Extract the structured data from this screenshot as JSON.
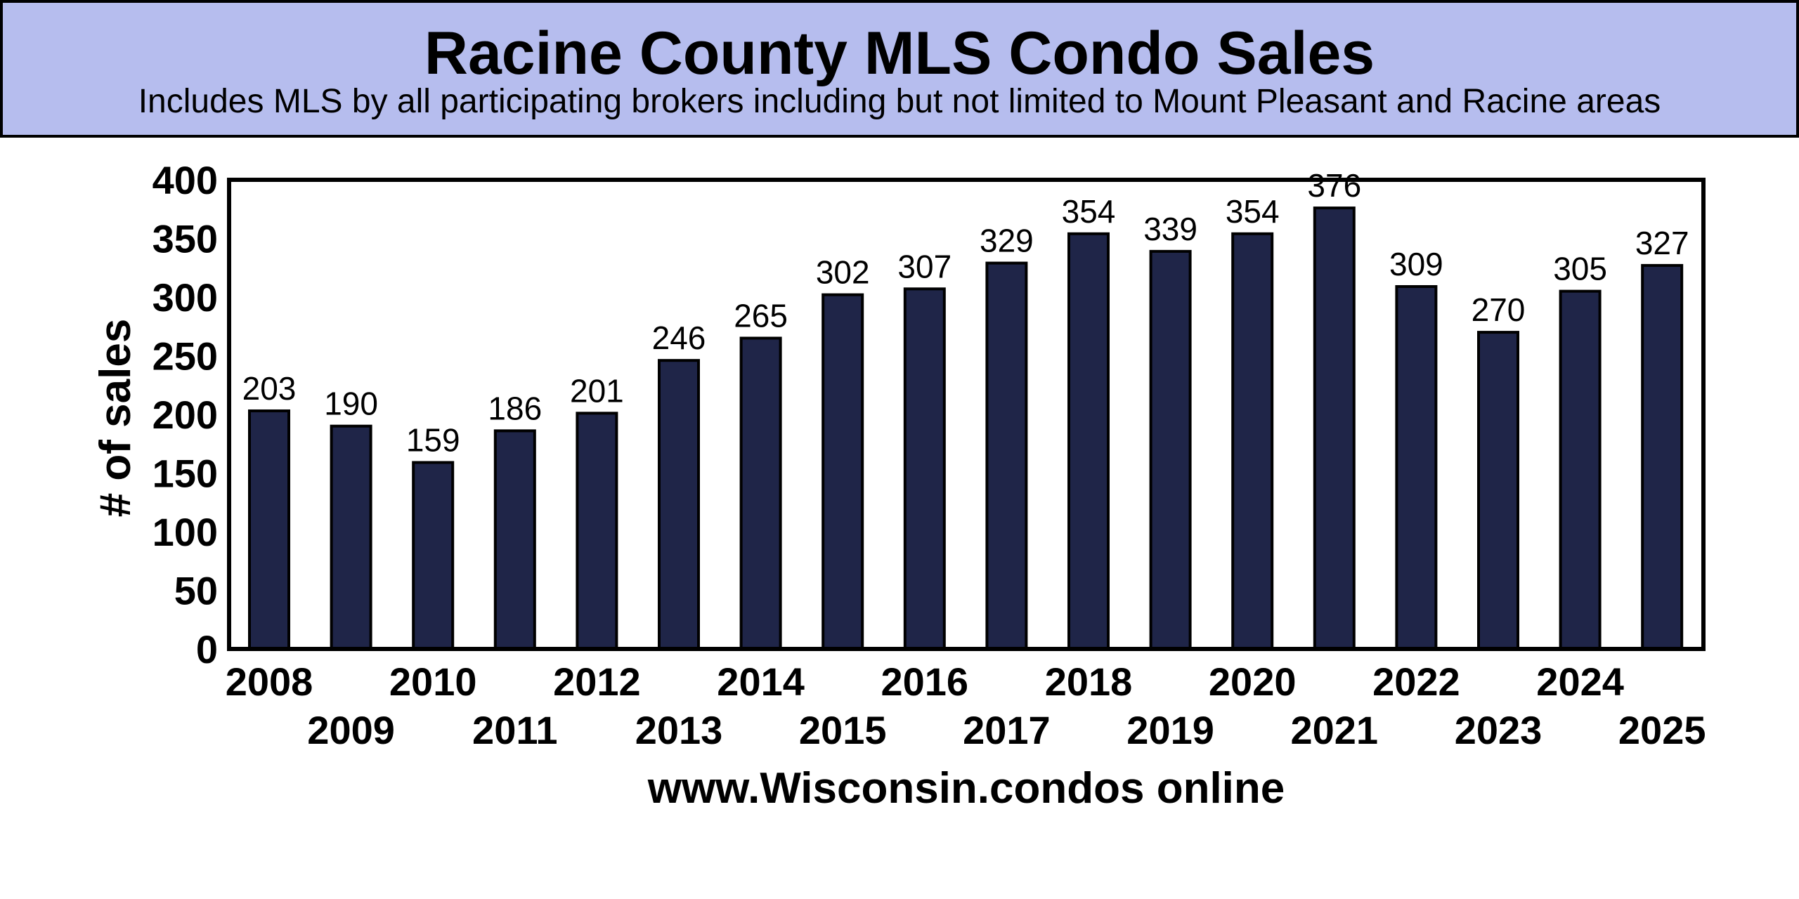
{
  "header": {
    "title": "Racine County MLS Condo Sales",
    "subtitle": "Includes MLS by all participating brokers including but not limited to Mount Pleasant and Racine areas",
    "background": "#b6bdee"
  },
  "footer": {
    "source": "www.Wisconsin.condos online"
  },
  "chart_data": {
    "type": "bar",
    "title": "Racine County MLS Condo Sales",
    "subtitle": "Includes MLS by all participating brokers including but not limited to Mount Pleasant and Racine areas",
    "xlabel": "www.Wisconsin.condos online",
    "ylabel": "# of sales",
    "ylim": [
      0,
      400
    ],
    "yticks": [
      0,
      50,
      100,
      150,
      200,
      250,
      300,
      350,
      400
    ],
    "categories": [
      "2008",
      "2009",
      "2010",
      "2011",
      "2012",
      "2013",
      "2014",
      "2015",
      "2016",
      "2017",
      "2018",
      "2019",
      "2020",
      "2021",
      "2022",
      "2023",
      "2024",
      "2025"
    ],
    "values": [
      203,
      190,
      159,
      186,
      201,
      246,
      265,
      302,
      307,
      329,
      354,
      339,
      354,
      376,
      309,
      270,
      305,
      327
    ],
    "grid": false,
    "legend": "none",
    "bar_color": "#1f2548"
  }
}
